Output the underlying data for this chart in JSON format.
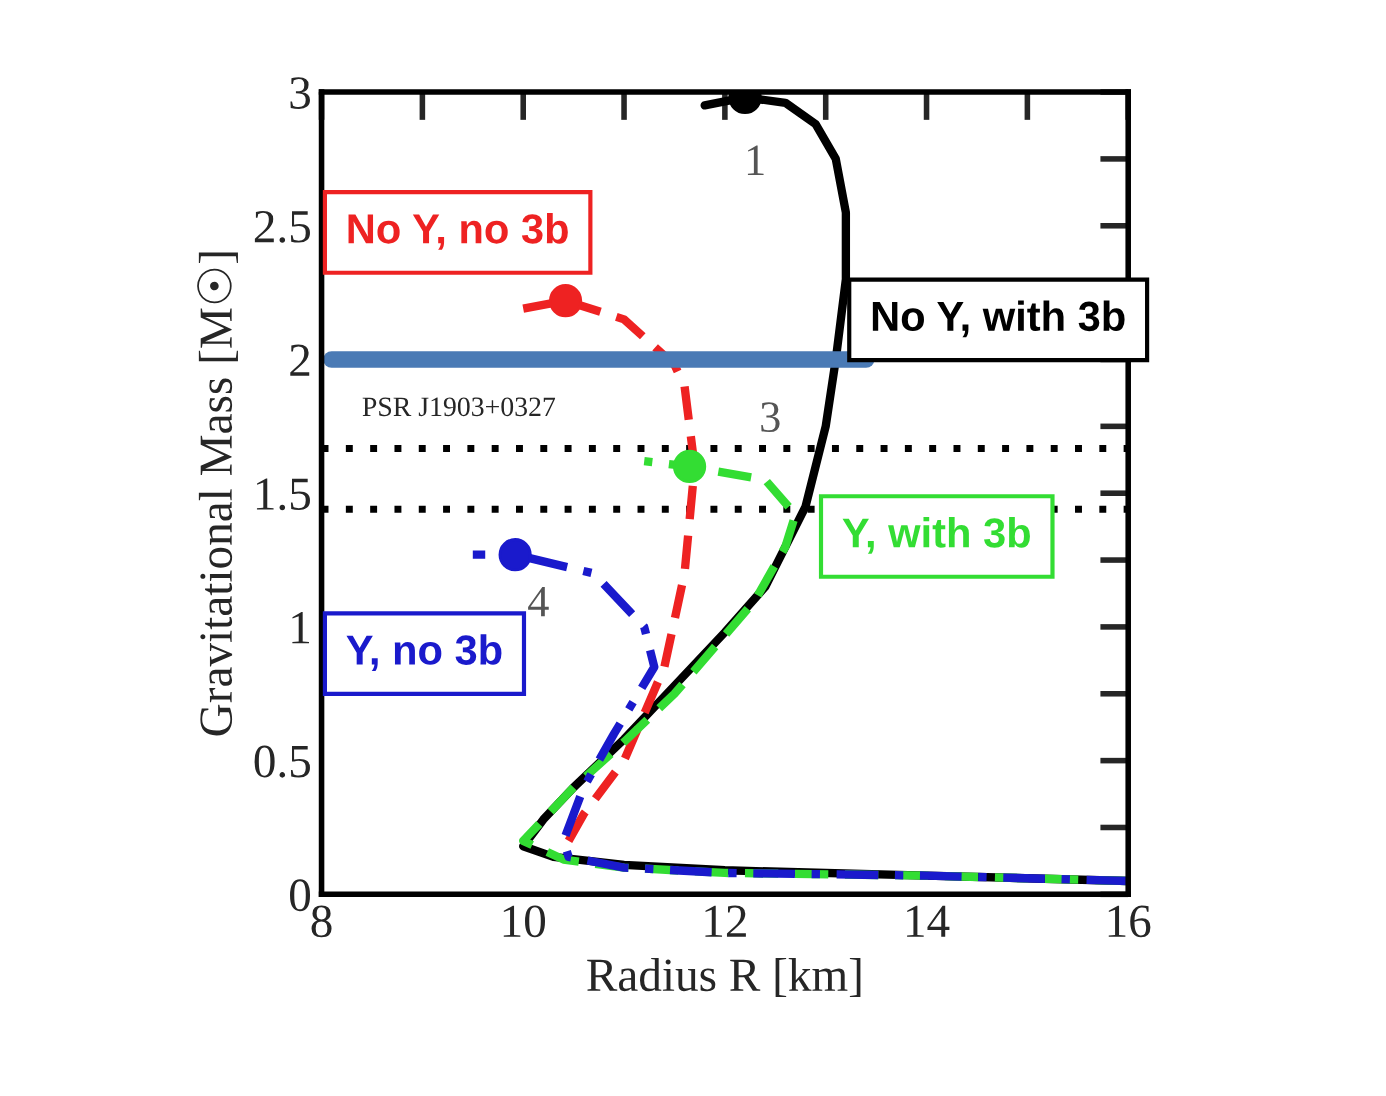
{
  "chart_data": {
    "type": "line",
    "xlabel": "Radius R [km]",
    "ylabel": "Gravitational Mass [M☉]",
    "xlim": [
      8,
      16
    ],
    "ylim": [
      0,
      3
    ],
    "xticks": [
      8,
      {
        "value": 9,
        "label": null
      },
      10,
      {
        "value": 11,
        "label": null
      },
      12,
      {
        "value": 13,
        "label": null
      },
      14,
      {
        "value": 15,
        "label": null
      },
      16
    ],
    "yticks": [
      0,
      {
        "value": 0.25,
        "label": null
      },
      0.5,
      {
        "value": 0.75,
        "label": null
      },
      1,
      {
        "value": 1.25,
        "label": null
      },
      1.5,
      {
        "value": 1.75,
        "label": null
      },
      2,
      {
        "value": 2.25,
        "label": null
      },
      2.5,
      {
        "value": 2.75,
        "label": null
      },
      3
    ],
    "legend": false,
    "grid": false,
    "series": [
      {
        "name": "No Y, with 3b",
        "color": "#000000",
        "line_style": "solid",
        "x": [
          16,
          14,
          12,
          11,
          10.3,
          10.0,
          10.2,
          10.5,
          11.0,
          11.5,
          12.0,
          12.4,
          12.8,
          13.0,
          13.1,
          13.2,
          13.2,
          13.1,
          12.9,
          12.6,
          12.2,
          11.8
        ],
        "values": [
          0.05,
          0.07,
          0.09,
          0.11,
          0.14,
          0.18,
          0.28,
          0.4,
          0.58,
          0.78,
          0.98,
          1.15,
          1.45,
          1.75,
          2.0,
          2.3,
          2.55,
          2.75,
          2.88,
          2.96,
          2.98,
          2.95
        ]
      },
      {
        "name": "No Y, no 3b",
        "color": "#ee2222",
        "line_style": "dashed",
        "x": [
          10.45,
          10.6,
          11.0,
          11.4,
          11.6,
          11.7,
          11.6,
          11.5,
          11.0,
          10.42,
          10.0
        ],
        "values": [
          0.2,
          0.3,
          0.5,
          0.85,
          1.2,
          1.6,
          1.9,
          1.98,
          2.15,
          2.22,
          2.19
        ]
      },
      {
        "name": "Y, with 3b",
        "color": "#33dd33",
        "line_style": "dashed",
        "x": [
          16,
          14,
          12,
          11.0,
          10.4,
          10.0,
          10.5,
          11.0,
          11.5,
          12.3,
          12.6,
          12.7,
          12.4,
          11.65,
          11.2
        ],
        "values": [
          0.05,
          0.07,
          0.08,
          0.1,
          0.13,
          0.2,
          0.4,
          0.57,
          0.75,
          1.1,
          1.3,
          1.42,
          1.55,
          1.6,
          1.62
        ]
      },
      {
        "name": "Y, no 3b",
        "color": "#1a1acc",
        "line_style": "dashdot",
        "x": [
          16,
          14,
          12,
          11.0,
          10.45,
          10.4,
          10.6,
          10.9,
          11.3,
          11.2,
          10.7,
          9.92,
          9.5
        ],
        "values": [
          0.05,
          0.07,
          0.08,
          0.1,
          0.14,
          0.2,
          0.4,
          0.6,
          0.85,
          1.0,
          1.2,
          1.27,
          1.27
        ]
      },
      {
        "color": "#4a7ab5",
        "line_style": "solid",
        "x": [
          8.1,
          13.4
        ],
        "values": [
          2.0,
          2.0
        ]
      },
      {
        "type": "scatter",
        "color": "#000000",
        "x": [
          12.2
        ],
        "values": [
          2.98
        ]
      },
      {
        "type": "scatter",
        "color": "#ee2222",
        "x": [
          10.42
        ],
        "values": [
          2.22
        ]
      },
      {
        "type": "scatter",
        "color": "#33dd33",
        "x": [
          11.65
        ],
        "values": [
          1.6
        ]
      },
      {
        "type": "scatter",
        "color": "#1a1acc",
        "x": [
          9.92
        ],
        "values": [
          1.27
        ]
      }
    ],
    "ref_lines": [
      {
        "axis": "y",
        "value": 1.667,
        "label": "PSR J1903+0327",
        "color": "#000000",
        "line_style": "dotted"
      },
      {
        "axis": "y",
        "value": 1.44,
        "color": "#000000",
        "line_style": "dotted"
      }
    ],
    "annotations": [
      "1",
      "3",
      "4"
    ]
  }
}
